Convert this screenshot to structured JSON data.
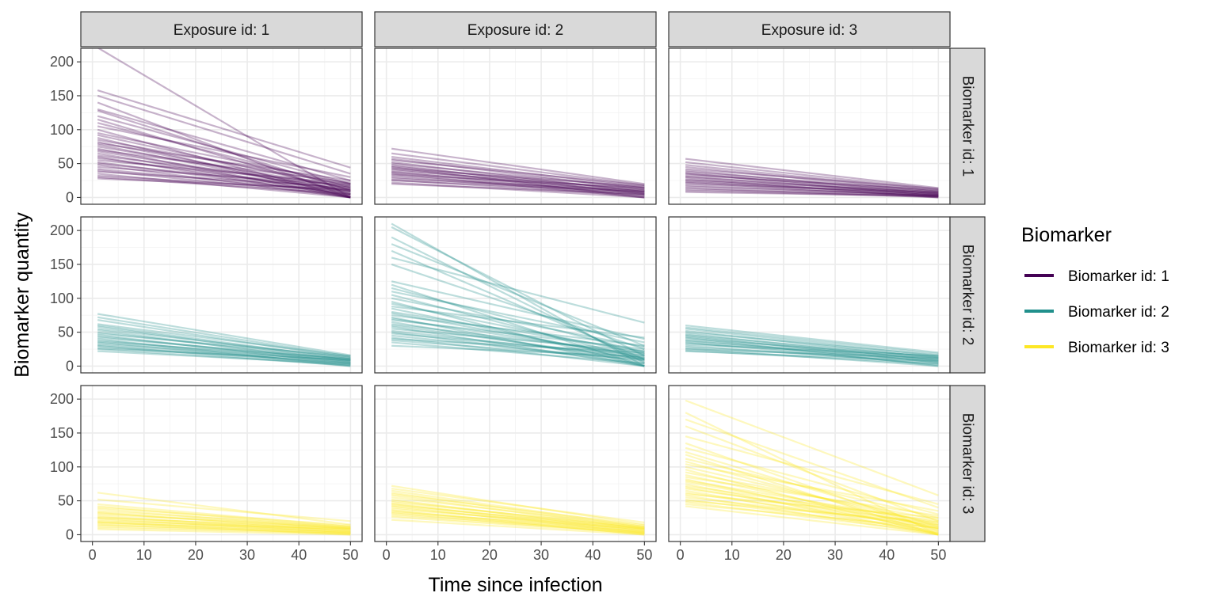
{
  "chart_data": {
    "type": "line",
    "layout": "facet-grid",
    "xlabel": "Time since infection",
    "ylabel": "Biomarker quantity",
    "xlim": [
      0,
      50
    ],
    "ylim": [
      0,
      220
    ],
    "x_ticks": [
      0,
      10,
      20,
      30,
      40,
      50
    ],
    "y_ticks": [
      0,
      50,
      100,
      150,
      200
    ],
    "grid": true,
    "column_facets": [
      "Exposure id: 1",
      "Exposure id: 2",
      "Exposure id: 3"
    ],
    "row_facets": [
      "Biomarker id: 1",
      "Biomarker id: 2",
      "Biomarker id: 3"
    ],
    "legend": {
      "title": "Biomarker",
      "placement": "right",
      "items": [
        {
          "label": "Biomarker id: 1",
          "color": "#440154"
        },
        {
          "label": "Biomarker id: 2",
          "color": "#21908C"
        },
        {
          "label": "Biomarker id: 3",
          "color": "#FDE725"
        }
      ]
    },
    "x_start": 1,
    "x_end": 50,
    "panels": [
      {
        "row": 0,
        "col": 0,
        "series_color": "#440154",
        "opacity": 0.3,
        "lines": [
          [
            221,
            0
          ],
          [
            158,
            44
          ],
          [
            150,
            35
          ],
          [
            140,
            0
          ],
          [
            130,
            25
          ],
          [
            128,
            10
          ],
          [
            120,
            20
          ],
          [
            115,
            5
          ],
          [
            110,
            15
          ],
          [
            105,
            30
          ],
          [
            100,
            0
          ],
          [
            95,
            20
          ],
          [
            92,
            12
          ],
          [
            88,
            0
          ],
          [
            85,
            18
          ],
          [
            82,
            8
          ],
          [
            80,
            25
          ],
          [
            78,
            5
          ],
          [
            75,
            14
          ],
          [
            72,
            0
          ],
          [
            70,
            22
          ],
          [
            68,
            10
          ],
          [
            65,
            3
          ],
          [
            62,
            16
          ],
          [
            60,
            0
          ],
          [
            58,
            9
          ],
          [
            55,
            20
          ],
          [
            52,
            4
          ],
          [
            50,
            12
          ],
          [
            48,
            0
          ],
          [
            45,
            18
          ],
          [
            42,
            7
          ],
          [
            40,
            2
          ],
          [
            38,
            15
          ],
          [
            35,
            0
          ],
          [
            32,
            10
          ],
          [
            30,
            5
          ],
          [
            28,
            12
          ]
        ]
      },
      {
        "row": 0,
        "col": 1,
        "series_color": "#440154",
        "opacity": 0.3,
        "lines": [
          [
            72,
            20
          ],
          [
            65,
            18
          ],
          [
            60,
            15
          ],
          [
            57,
            12
          ],
          [
            55,
            18
          ],
          [
            52,
            8
          ],
          [
            50,
            14
          ],
          [
            48,
            5
          ],
          [
            46,
            10
          ],
          [
            45,
            0
          ],
          [
            43,
            16
          ],
          [
            42,
            6
          ],
          [
            40,
            12
          ],
          [
            38,
            3
          ],
          [
            37,
            9
          ],
          [
            35,
            0
          ],
          [
            34,
            14
          ],
          [
            32,
            7
          ],
          [
            30,
            4
          ],
          [
            28,
            10
          ],
          [
            26,
            2
          ],
          [
            25,
            8
          ],
          [
            22,
            0
          ],
          [
            20,
            5
          ]
        ]
      },
      {
        "row": 0,
        "col": 2,
        "series_color": "#440154",
        "opacity": 0.3,
        "lines": [
          [
            57,
            14
          ],
          [
            52,
            12
          ],
          [
            48,
            10
          ],
          [
            45,
            8
          ],
          [
            42,
            13
          ],
          [
            40,
            5
          ],
          [
            38,
            9
          ],
          [
            36,
            2
          ],
          [
            35,
            7
          ],
          [
            33,
            11
          ],
          [
            31,
            4
          ],
          [
            30,
            6
          ],
          [
            28,
            0
          ],
          [
            26,
            8
          ],
          [
            25,
            3
          ],
          [
            23,
            5
          ],
          [
            22,
            1
          ],
          [
            20,
            7
          ],
          [
            18,
            2
          ],
          [
            16,
            4
          ],
          [
            14,
            0
          ],
          [
            12,
            3
          ],
          [
            10,
            1
          ],
          [
            8,
            2
          ]
        ]
      },
      {
        "row": 1,
        "col": 0,
        "series_color": "#21908C",
        "opacity": 0.3,
        "lines": [
          [
            77,
            16
          ],
          [
            72,
            14
          ],
          [
            68,
            12
          ],
          [
            62,
            15
          ],
          [
            60,
            10
          ],
          [
            58,
            8
          ],
          [
            55,
            12
          ],
          [
            53,
            5
          ],
          [
            50,
            9
          ],
          [
            48,
            14
          ],
          [
            46,
            3
          ],
          [
            44,
            7
          ],
          [
            42,
            10
          ],
          [
            40,
            0
          ],
          [
            38,
            6
          ],
          [
            36,
            11
          ],
          [
            35,
            2
          ],
          [
            33,
            8
          ],
          [
            31,
            4
          ],
          [
            30,
            0
          ],
          [
            28,
            5
          ],
          [
            26,
            9
          ],
          [
            25,
            1
          ],
          [
            22,
            3
          ]
        ]
      },
      {
        "row": 1,
        "col": 1,
        "series_color": "#21908C",
        "opacity": 0.3,
        "lines": [
          [
            210,
            0
          ],
          [
            205,
            15
          ],
          [
            190,
            5
          ],
          [
            180,
            30
          ],
          [
            170,
            10
          ],
          [
            160,
            64
          ],
          [
            150,
            25
          ],
          [
            125,
            40
          ],
          [
            120,
            0
          ],
          [
            115,
            20
          ],
          [
            110,
            35
          ],
          [
            105,
            10
          ],
          [
            100,
            28
          ],
          [
            95,
            0
          ],
          [
            92,
            18
          ],
          [
            88,
            42
          ],
          [
            85,
            8
          ],
          [
            80,
            22
          ],
          [
            78,
            12
          ],
          [
            75,
            30
          ],
          [
            72,
            0
          ],
          [
            70,
            15
          ],
          [
            68,
            25
          ],
          [
            65,
            5
          ],
          [
            62,
            18
          ],
          [
            60,
            10
          ],
          [
            58,
            0
          ],
          [
            55,
            22
          ],
          [
            52,
            12
          ],
          [
            50,
            3
          ],
          [
            48,
            16
          ],
          [
            45,
            8
          ],
          [
            42,
            0
          ],
          [
            40,
            20
          ],
          [
            38,
            10
          ],
          [
            35,
            4
          ],
          [
            30,
            14
          ]
        ]
      },
      {
        "row": 1,
        "col": 2,
        "series_color": "#21908C",
        "opacity": 0.3,
        "lines": [
          [
            60,
            20
          ],
          [
            57,
            18
          ],
          [
            55,
            15
          ],
          [
            52,
            12
          ],
          [
            50,
            16
          ],
          [
            48,
            8
          ],
          [
            46,
            13
          ],
          [
            45,
            5
          ],
          [
            43,
            10
          ],
          [
            42,
            0
          ],
          [
            40,
            14
          ],
          [
            38,
            6
          ],
          [
            37,
            11
          ],
          [
            35,
            2
          ],
          [
            34,
            9
          ],
          [
            32,
            15
          ],
          [
            30,
            4
          ],
          [
            28,
            8
          ],
          [
            26,
            0
          ],
          [
            25,
            12
          ],
          [
            23,
            3
          ],
          [
            22,
            7
          ]
        ]
      },
      {
        "row": 2,
        "col": 0,
        "series_color": "#FDE725",
        "opacity": 0.3,
        "lines": [
          [
            62,
            15
          ],
          [
            52,
            20
          ],
          [
            45,
            12
          ],
          [
            42,
            10
          ],
          [
            40,
            14
          ],
          [
            38,
            8
          ],
          [
            35,
            12
          ],
          [
            33,
            5
          ],
          [
            32,
            9
          ],
          [
            30,
            11
          ],
          [
            28,
            3
          ],
          [
            26,
            7
          ],
          [
            25,
            10
          ],
          [
            24,
            2
          ],
          [
            22,
            6
          ],
          [
            20,
            9
          ],
          [
            19,
            0
          ],
          [
            18,
            4
          ],
          [
            17,
            8
          ],
          [
            15,
            1
          ],
          [
            14,
            5
          ],
          [
            12,
            3
          ],
          [
            10,
            2
          ],
          [
            8,
            0
          ]
        ]
      },
      {
        "row": 2,
        "col": 1,
        "series_color": "#FDE725",
        "opacity": 0.3,
        "lines": [
          [
            72,
            15
          ],
          [
            68,
            18
          ],
          [
            65,
            12
          ],
          [
            62,
            10
          ],
          [
            60,
            14
          ],
          [
            58,
            8
          ],
          [
            55,
            12
          ],
          [
            52,
            5
          ],
          [
            50,
            9
          ],
          [
            48,
            11
          ],
          [
            46,
            3
          ],
          [
            45,
            7
          ],
          [
            43,
            10
          ],
          [
            42,
            2
          ],
          [
            40,
            6
          ],
          [
            38,
            9
          ],
          [
            36,
            0
          ],
          [
            35,
            4
          ],
          [
            33,
            8
          ],
          [
            32,
            1
          ],
          [
            30,
            5
          ],
          [
            28,
            3
          ],
          [
            26,
            2
          ],
          [
            22,
            0
          ]
        ]
      },
      {
        "row": 2,
        "col": 2,
        "series_color": "#FDE725",
        "opacity": 0.3,
        "lines": [
          [
            198,
            58
          ],
          [
            180,
            0
          ],
          [
            170,
            40
          ],
          [
            160,
            20
          ],
          [
            145,
            45
          ],
          [
            135,
            5
          ],
          [
            128,
            30
          ],
          [
            122,
            12
          ],
          [
            118,
            0
          ],
          [
            112,
            25
          ],
          [
            108,
            8
          ],
          [
            104,
            35
          ],
          [
            100,
            15
          ],
          [
            96,
            0
          ],
          [
            92,
            22
          ],
          [
            88,
            10
          ],
          [
            85,
            28
          ],
          [
            82,
            3
          ],
          [
            80,
            18
          ],
          [
            78,
            12
          ],
          [
            75,
            0
          ],
          [
            72,
            20
          ],
          [
            70,
            8
          ],
          [
            68,
            15
          ],
          [
            65,
            2
          ],
          [
            62,
            10
          ],
          [
            60,
            25
          ],
          [
            58,
            0
          ],
          [
            55,
            14
          ],
          [
            52,
            6
          ],
          [
            50,
            18
          ],
          [
            48,
            3
          ],
          [
            45,
            10
          ],
          [
            42,
            0
          ]
        ]
      }
    ]
  }
}
